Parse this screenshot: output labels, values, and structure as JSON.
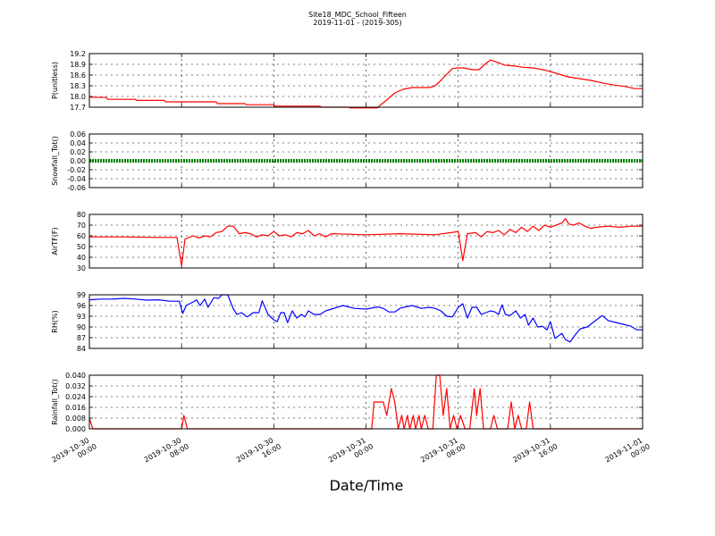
{
  "chart_data": {
    "title": "Site18_MDC_School_Fifteen",
    "subtitle": "2019-11-01 - (2019-305)",
    "xlabel": "Date/Time",
    "type": "line",
    "grid": true,
    "x_ticks": [
      "2019-10-30 00:00",
      "2019-10-30 08:00",
      "2019-10-30 16:00",
      "2019-10-31 00:00",
      "2019-10-31 08:00",
      "2019-10-31 16:00",
      "2019-11-01 00:00"
    ],
    "x_range_hours": [
      0,
      48
    ],
    "panels": [
      {
        "ylabel": "P(unitless)",
        "color": "#ff0000",
        "ylim": [
          17.7,
          19.2
        ],
        "yticks": [
          "17.7",
          "18.0",
          "18.3",
          "18.6",
          "18.9",
          "19.2"
        ],
        "series": [
          [
            0,
            17.98
          ],
          [
            1.5,
            17.97
          ],
          [
            1.6,
            17.92
          ],
          [
            4,
            17.92
          ],
          [
            4.1,
            17.89
          ],
          [
            6.5,
            17.89
          ],
          [
            6.6,
            17.85
          ],
          [
            11,
            17.85
          ],
          [
            11.1,
            17.8
          ],
          [
            13.5,
            17.8
          ],
          [
            13.6,
            17.77
          ],
          [
            16,
            17.77
          ],
          [
            16.1,
            17.73
          ],
          [
            20,
            17.73
          ],
          [
            20.1,
            17.7
          ],
          [
            22.5,
            17.7
          ],
          [
            22.6,
            17.68
          ],
          [
            25,
            17.68
          ],
          [
            25.2,
            17.75
          ],
          [
            25.8,
            17.9
          ],
          [
            26.5,
            18.1
          ],
          [
            27.2,
            18.2
          ],
          [
            28,
            18.25
          ],
          [
            29.5,
            18.25
          ],
          [
            30,
            18.3
          ],
          [
            30.5,
            18.45
          ],
          [
            31,
            18.62
          ],
          [
            31.5,
            18.78
          ],
          [
            32,
            18.8
          ],
          [
            32.5,
            18.8
          ],
          [
            33.2,
            18.75
          ],
          [
            33.8,
            18.75
          ],
          [
            34.5,
            18.95
          ],
          [
            34.8,
            19.02
          ],
          [
            35.2,
            18.98
          ],
          [
            36,
            18.88
          ],
          [
            37,
            18.85
          ],
          [
            37.5,
            18.82
          ],
          [
            38.5,
            18.8
          ],
          [
            39.5,
            18.74
          ],
          [
            40.5,
            18.65
          ],
          [
            41.5,
            18.55
          ],
          [
            42.5,
            18.5
          ],
          [
            43.5,
            18.45
          ],
          [
            44.5,
            18.38
          ],
          [
            45.5,
            18.32
          ],
          [
            46.5,
            18.28
          ],
          [
            47.3,
            18.22
          ],
          [
            48,
            18.22
          ]
        ]
      },
      {
        "ylabel": "Snowfall_Tot()",
        "color": "#008000",
        "ylim": [
          -0.06,
          0.06
        ],
        "yticks": [
          "-0.06",
          "-0.04",
          "-0.02",
          "0.00",
          "0.02",
          "0.04",
          "0.06"
        ],
        "series": [
          [
            0,
            0
          ],
          [
            48,
            0
          ]
        ]
      },
      {
        "ylabel": "AirTF(F)",
        "color": "#ff0000",
        "ylim": [
          30,
          80
        ],
        "yticks": [
          "30",
          "40",
          "50",
          "60",
          "70",
          "80"
        ],
        "series": [
          [
            0,
            59
          ],
          [
            3,
            59
          ],
          [
            6,
            58.5
          ],
          [
            7.6,
            58.5
          ],
          [
            8,
            32
          ],
          [
            8.3,
            57
          ],
          [
            9,
            60
          ],
          [
            9.5,
            58
          ],
          [
            10,
            60
          ],
          [
            10.5,
            59
          ],
          [
            11,
            63
          ],
          [
            11.5,
            64
          ],
          [
            12,
            69
          ],
          [
            12.5,
            69
          ],
          [
            13,
            62
          ],
          [
            13.5,
            63
          ],
          [
            14,
            62
          ],
          [
            14.5,
            59
          ],
          [
            15,
            61
          ],
          [
            15.5,
            60
          ],
          [
            16,
            64
          ],
          [
            16.5,
            60
          ],
          [
            17,
            61
          ],
          [
            17.5,
            59
          ],
          [
            18,
            63
          ],
          [
            18.5,
            62
          ],
          [
            19,
            65
          ],
          [
            19.5,
            60
          ],
          [
            20,
            62
          ],
          [
            20.5,
            59
          ],
          [
            21,
            62
          ],
          [
            24,
            61
          ],
          [
            27,
            62
          ],
          [
            30,
            61
          ],
          [
            32,
            64
          ],
          [
            32.4,
            37
          ],
          [
            32.8,
            62
          ],
          [
            33.5,
            63
          ],
          [
            34,
            59
          ],
          [
            34.5,
            64
          ],
          [
            35,
            63
          ],
          [
            35.5,
            65
          ],
          [
            36,
            61
          ],
          [
            36.5,
            66
          ],
          [
            37,
            63
          ],
          [
            37.5,
            68
          ],
          [
            38,
            64
          ],
          [
            38.5,
            69
          ],
          [
            39,
            65
          ],
          [
            39.5,
            70
          ],
          [
            40,
            68
          ],
          [
            40.5,
            70
          ],
          [
            41,
            72
          ],
          [
            41.3,
            76
          ],
          [
            41.6,
            71
          ],
          [
            42,
            70
          ],
          [
            42.5,
            72
          ],
          [
            43,
            69
          ],
          [
            43.5,
            67
          ],
          [
            44,
            68
          ],
          [
            45,
            69
          ],
          [
            46,
            68
          ],
          [
            47,
            69
          ],
          [
            48,
            69
          ]
        ]
      },
      {
        "ylabel": "RH(%)",
        "color": "#0000ff",
        "ylim": [
          84,
          99
        ],
        "yticks": [
          "84",
          "87",
          "90",
          "93",
          "96",
          "99"
        ],
        "series": [
          [
            0,
            97.6
          ],
          [
            1,
            97.8
          ],
          [
            2,
            97.8
          ],
          [
            3,
            98
          ],
          [
            4,
            97.8
          ],
          [
            5,
            97.5
          ],
          [
            6,
            97.6
          ],
          [
            7,
            97.2
          ],
          [
            7.8,
            97.2
          ],
          [
            8.1,
            93.8
          ],
          [
            8.4,
            96
          ],
          [
            9,
            97
          ],
          [
            9.3,
            97.6
          ],
          [
            9.6,
            96
          ],
          [
            10,
            97.8
          ],
          [
            10.3,
            95.5
          ],
          [
            10.8,
            98.2
          ],
          [
            11.2,
            98
          ],
          [
            11.5,
            99
          ],
          [
            12,
            99
          ],
          [
            12.5,
            95
          ],
          [
            12.8,
            93.5
          ],
          [
            13.2,
            94
          ],
          [
            13.7,
            92.8
          ],
          [
            14.2,
            94
          ],
          [
            14.7,
            94
          ],
          [
            15,
            97.3
          ],
          [
            15.5,
            93.5
          ],
          [
            16,
            92
          ],
          [
            16.3,
            91.5
          ],
          [
            16.6,
            94
          ],
          [
            16.9,
            94
          ],
          [
            17.2,
            91.2
          ],
          [
            17.6,
            94.5
          ],
          [
            18,
            92.5
          ],
          [
            18.4,
            93.5
          ],
          [
            18.7,
            92.8
          ],
          [
            19,
            94.5
          ],
          [
            19.5,
            93.5
          ],
          [
            20,
            93.5
          ],
          [
            20.5,
            94.5
          ],
          [
            21,
            95
          ],
          [
            22,
            96
          ],
          [
            23,
            95.2
          ],
          [
            24,
            95
          ],
          [
            25,
            95.6
          ],
          [
            25.5,
            95.2
          ],
          [
            26,
            94.2
          ],
          [
            26.5,
            94.2
          ],
          [
            27,
            95.3
          ],
          [
            28,
            96
          ],
          [
            28.8,
            95.2
          ],
          [
            29.5,
            95.5
          ],
          [
            30,
            95.2
          ],
          [
            30.5,
            94.5
          ],
          [
            31,
            93
          ],
          [
            31.5,
            92.8
          ],
          [
            32,
            95.5
          ],
          [
            32.4,
            96.5
          ],
          [
            32.8,
            92.5
          ],
          [
            33.2,
            95.5
          ],
          [
            33.6,
            95.5
          ],
          [
            34,
            93.5
          ],
          [
            34.4,
            94
          ],
          [
            34.8,
            94.5
          ],
          [
            35.2,
            94.2
          ],
          [
            35.5,
            93.5
          ],
          [
            35.8,
            96.2
          ],
          [
            36.1,
            93.5
          ],
          [
            36.5,
            93.2
          ],
          [
            37,
            94.5
          ],
          [
            37.4,
            92.5
          ],
          [
            37.8,
            93.5
          ],
          [
            38.1,
            90.5
          ],
          [
            38.5,
            92.5
          ],
          [
            38.9,
            90
          ],
          [
            39.3,
            90.2
          ],
          [
            39.7,
            89.2
          ],
          [
            40,
            91.5
          ],
          [
            40.4,
            86.8
          ],
          [
            41,
            88.2
          ],
          [
            41.3,
            86.5
          ],
          [
            41.7,
            85.8
          ],
          [
            42.2,
            88
          ],
          [
            42.6,
            89.5
          ],
          [
            43.2,
            90
          ],
          [
            43.8,
            91.5
          ],
          [
            44.5,
            93.2
          ],
          [
            45,
            91.8
          ],
          [
            46,
            91
          ],
          [
            47,
            90.2
          ],
          [
            47.5,
            89.2
          ],
          [
            48,
            89.2
          ]
        ]
      },
      {
        "ylabel": "Rainfall_Tot()",
        "color": "#ff0000",
        "ylim": [
          0,
          0.04
        ],
        "yticks": [
          "0.000",
          "0.008",
          "0.016",
          "0.024",
          "0.032",
          "0.040"
        ],
        "series": [
          [
            0,
            0.008
          ],
          [
            0.3,
            0
          ],
          [
            8,
            0
          ],
          [
            8.2,
            0.01
          ],
          [
            8.5,
            0
          ],
          [
            24.5,
            0
          ],
          [
            24.7,
            0.02
          ],
          [
            25.5,
            0.02
          ],
          [
            25.8,
            0.01
          ],
          [
            26.2,
            0.03
          ],
          [
            26.5,
            0.02
          ],
          [
            26.8,
            0
          ],
          [
            27.1,
            0.01
          ],
          [
            27.3,
            0
          ],
          [
            27.6,
            0.01
          ],
          [
            27.8,
            0
          ],
          [
            28.1,
            0.01
          ],
          [
            28.3,
            0
          ],
          [
            28.6,
            0.01
          ],
          [
            28.8,
            0
          ],
          [
            29.1,
            0.01
          ],
          [
            29.4,
            0
          ],
          [
            29.8,
            0
          ],
          [
            30.1,
            0.04
          ],
          [
            30.4,
            0.04
          ],
          [
            30.7,
            0.01
          ],
          [
            31,
            0.03
          ],
          [
            31.3,
            0
          ],
          [
            31.6,
            0.01
          ],
          [
            31.9,
            0
          ],
          [
            32.2,
            0.01
          ],
          [
            32.6,
            0
          ],
          [
            33,
            0
          ],
          [
            33.4,
            0.03
          ],
          [
            33.6,
            0.01
          ],
          [
            33.9,
            0.03
          ],
          [
            34.2,
            0
          ],
          [
            34.8,
            0
          ],
          [
            35.1,
            0.01
          ],
          [
            35.4,
            0
          ],
          [
            36.3,
            0
          ],
          [
            36.6,
            0.02
          ],
          [
            36.9,
            0
          ],
          [
            37.2,
            0.01
          ],
          [
            37.5,
            0
          ],
          [
            37.9,
            0
          ],
          [
            38.2,
            0.02
          ],
          [
            38.5,
            0
          ],
          [
            48,
            0
          ]
        ]
      }
    ]
  }
}
